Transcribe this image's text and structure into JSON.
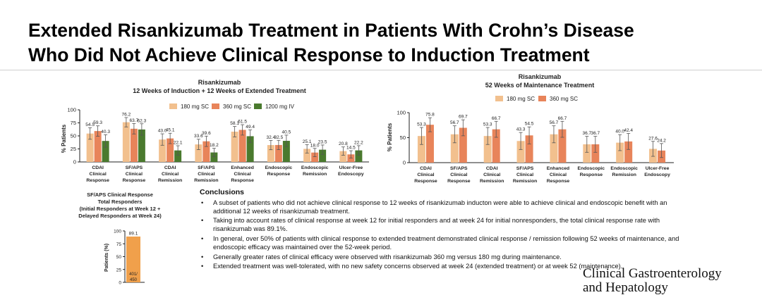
{
  "page": {
    "title_line1": "Extended Risankizumab Treatment in Patients With Crohn’s Disease",
    "title_line2": "Who Did Not Achieve Clinical Response to Induction Treatment",
    "journal_line1": "Clinical Gastroenterology",
    "journal_line2": "and Hepatology"
  },
  "conclusions": {
    "heading": "Conclusions",
    "bullet": "•",
    "items": [
      "A subset of patients who did not achieve clinical response to 12 weeks of risankizumab inducton were able to achieve clinical and endoscopic benefit with an additional 12 weeks of risankizumab treatment.",
      "Taking into account rates of clinical response at week 12 for initial responders and at week 24 for initial nonresponders, the total clinical response rate with risankizumab was 89.1%.",
      "In general, over 50% of patients with clinical response to extended treatment demonstrated clinical response / remission following 52 weeks of maintenance, and endoscopic efficacy was maintained over the 52-week period.",
      "Generally greater rates of clinical efficacy were observed with risankizumab 360 mg versus 180 mg during maintenance.",
      "Extended treatment was well-tolerated, with no new safety concerns observed at week 24 (extended treatment) or at week 52 (maintenance).."
    ]
  },
  "chart_data": [
    {
      "type": "bar",
      "title": "Risankizumab",
      "subtitle": "12 Weeks of Induction + 12 Weeks of Extended Treatment",
      "ylabel": "% Patients",
      "ylim": [
        0,
        100
      ],
      "yticks": [
        "0",
        "25",
        "50",
        "75",
        "100"
      ],
      "legend_position": "top",
      "error_bars": true,
      "categories": [
        [
          "CDAI",
          "Clinical",
          "Response"
        ],
        [
          "SF/APS",
          "Clinical",
          "Response"
        ],
        [
          "CDAI",
          "Clinical",
          "Remission"
        ],
        [
          "SF/APS",
          "Clinical",
          "Remission"
        ],
        [
          "Enhanced",
          "Clinical",
          "Response"
        ],
        [
          "Endoscopic",
          "Response"
        ],
        [
          "Endoscopic",
          "Remission"
        ],
        [
          "Ulcer-Free",
          "Endoscopy"
        ]
      ],
      "series": [
        {
          "name": "180 mg SC",
          "color": "#f2c08e",
          "values": [
            54.5,
            76.2,
            43.0,
            33.6,
            58.1,
            32.4,
            25.1,
            20.8
          ],
          "labels": [
            "54.5",
            "76.2",
            "43.0",
            "33.6",
            "58.1",
            "32.4",
            "25.1",
            "20.8"
          ],
          "err": [
            11,
            9,
            11,
            10,
            10,
            9,
            8,
            8
          ]
        },
        {
          "name": "360 mg SC",
          "color": "#e8845a",
          "values": [
            59.3,
            63.7,
            45.1,
            39.6,
            61.5,
            32.5,
            18.0,
            14.5
          ],
          "labels": [
            "59.3",
            "63.7",
            "45.1",
            "39.6",
            "61.5",
            "32.5",
            "18.0",
            "14.5"
          ],
          "err": [
            10,
            10,
            10,
            10,
            10,
            9,
            8,
            7
          ]
        },
        {
          "name": "1200 mg IV",
          "color": "#4a7a2e",
          "values": [
            40.3,
            62.3,
            22.1,
            18.2,
            49.4,
            40.5,
            23.5,
            22.2
          ],
          "labels": [
            "40.3",
            "62.3",
            "22.1",
            "18.2",
            "49.4",
            "40.5",
            "23.5",
            "22.2"
          ],
          "err": [
            12,
            11,
            9,
            8,
            12,
            11,
            9,
            9
          ]
        }
      ]
    },
    {
      "type": "bar",
      "title": "Risankizumab",
      "subtitle": "52 Weeks of Maintenance Treatment",
      "ylabel": "% Patients",
      "ylim": [
        0,
        100
      ],
      "yticks": [
        "0",
        "50",
        "100"
      ],
      "legend_position": "top",
      "error_bars": true,
      "categories": [
        [
          "CDAI",
          "Clinical",
          "Response"
        ],
        [
          "SF/APS",
          "Clinical",
          "Response"
        ],
        [
          "CDAI",
          "Clinical",
          "Remission"
        ],
        [
          "SF/APS",
          "Clinical",
          "Remission"
        ],
        [
          "Enhanced",
          "Clinical",
          "Response"
        ],
        [
          "Endoscopic",
          "Response"
        ],
        [
          "Endoscopic",
          "Remission"
        ],
        [
          "Ulcer-Free",
          "Endoscopy"
        ]
      ],
      "series": [
        {
          "name": "180 mg SC",
          "color": "#f2c08e",
          "values": [
            53.3,
            56.7,
            53.3,
            43.3,
            56.7,
            36.7,
            40.0,
            27.6
          ],
          "labels": [
            "53.3",
            "56.7",
            "53.3",
            "43.3",
            "56.7",
            "36.7",
            "40.0",
            "27.6"
          ],
          "err": [
            17,
            17,
            17,
            17,
            17,
            16,
            16,
            15
          ]
        },
        {
          "name": "360 mg SC",
          "color": "#e8845a",
          "values": [
            75.8,
            69.7,
            66.7,
            54.5,
            66.7,
            36.7,
            42.4,
            24.2
          ],
          "labels": [
            "75.8",
            "69.7",
            "66.7",
            "54.5",
            "66.7",
            "36.7",
            "42.4",
            "24.2"
          ],
          "err": [
            14,
            16,
            16,
            17,
            16,
            16,
            16,
            14
          ]
        }
      ]
    },
    {
      "type": "bar",
      "title_lines": [
        "SF/APS Clinical Response",
        "Total Responders",
        "(Initial Responders at Week 12 +",
        "Delayed Responders at Week 24)"
      ],
      "ylabel": "Patients (%)",
      "ylim": [
        0,
        100
      ],
      "yticks": [
        "0",
        "25",
        "50",
        "75",
        "100"
      ],
      "categories": [
        ""
      ],
      "series": [
        {
          "color": "#f0a04b",
          "values": [
            89.1
          ],
          "labels": [
            "89.1"
          ]
        }
      ],
      "inner_label": [
        "401/",
        "450"
      ]
    }
  ]
}
